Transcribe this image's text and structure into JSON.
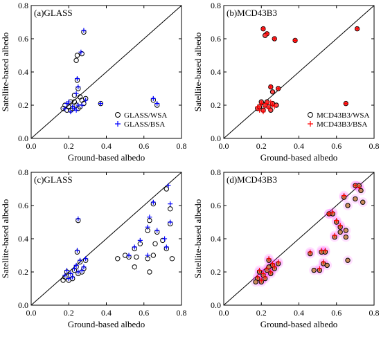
{
  "chart_data": [
    {
      "type": "scatter",
      "title": "(a)GLASS",
      "xlabel": "Ground-based albedo",
      "ylabel": "Satellite-based albedo",
      "xlim": [
        0,
        0.8
      ],
      "ylim": [
        0,
        0.8
      ],
      "xticks": [
        "0.0",
        "0.2",
        "0.4",
        "0.6",
        "0.8"
      ],
      "yticks": [
        "0.0",
        "0.2",
        "0.4",
        "0.6",
        "0.8"
      ],
      "one_to_one_line": true,
      "legend_position": "bottom-right",
      "series": [
        {
          "name": "GLASS/WSA",
          "marker": "open-circle",
          "color": "#000000",
          "points": [
            [
              0.28,
              0.64
            ],
            [
              0.27,
              0.51
            ],
            [
              0.245,
              0.5
            ],
            [
              0.24,
              0.47
            ],
            [
              0.245,
              0.35
            ],
            [
              0.25,
              0.3
            ],
            [
              0.23,
              0.26
            ],
            [
              0.26,
              0.25
            ],
            [
              0.29,
              0.24
            ],
            [
              0.37,
              0.21
            ],
            [
              0.65,
              0.23
            ],
            [
              0.67,
              0.2
            ],
            [
              0.21,
              0.22
            ],
            [
              0.27,
              0.23
            ],
            [
              0.18,
              0.2
            ],
            [
              0.2,
              0.19
            ],
            [
              0.22,
              0.18
            ],
            [
              0.24,
              0.2
            ],
            [
              0.26,
              0.19
            ],
            [
              0.19,
              0.17
            ],
            [
              0.23,
              0.22
            ],
            [
              0.25,
              0.18
            ],
            [
              0.17,
              0.18
            ],
            [
              0.28,
              0.21
            ],
            [
              0.21,
              0.17
            ]
          ]
        },
        {
          "name": "GLASS/BSA",
          "marker": "plus",
          "color": "#0000ff",
          "points": [
            [
              0.28,
              0.65
            ],
            [
              0.265,
              0.52
            ],
            [
              0.245,
              0.36
            ],
            [
              0.25,
              0.31
            ],
            [
              0.24,
              0.27
            ],
            [
              0.29,
              0.23
            ],
            [
              0.37,
              0.21
            ],
            [
              0.65,
              0.24
            ],
            [
              0.67,
              0.21
            ],
            [
              0.19,
              0.21
            ],
            [
              0.22,
              0.19
            ],
            [
              0.25,
              0.2
            ],
            [
              0.18,
              0.18
            ],
            [
              0.21,
              0.16
            ],
            [
              0.24,
              0.17
            ],
            [
              0.27,
              0.2
            ],
            [
              0.2,
              0.22
            ],
            [
              0.23,
              0.18
            ]
          ]
        }
      ]
    },
    {
      "type": "scatter",
      "title": "(b)MCD43B3",
      "xlabel": "Ground-based albedo",
      "ylabel": "Satellite-based albedo",
      "xlim": [
        0,
        0.8
      ],
      "ylim": [
        0,
        0.8
      ],
      "xticks": [
        "0.0",
        "0.2",
        "0.4",
        "0.6",
        "0.8"
      ],
      "yticks": [
        "0.0",
        "0.2",
        "0.4",
        "0.6",
        "0.8"
      ],
      "one_to_one_line": true,
      "legend_position": "bottom-right",
      "series": [
        {
          "name": "MCD43B3/WSA",
          "marker": "open-circle",
          "color": "#000000",
          "points": [
            [
              0.21,
              0.66
            ],
            [
              0.23,
              0.63
            ],
            [
              0.22,
              0.62
            ],
            [
              0.27,
              0.6
            ],
            [
              0.38,
              0.59
            ],
            [
              0.71,
              0.66
            ],
            [
              0.65,
              0.21
            ],
            [
              0.29,
              0.3
            ],
            [
              0.25,
              0.31
            ],
            [
              0.26,
              0.28
            ],
            [
              0.2,
              0.22
            ],
            [
              0.22,
              0.2
            ],
            [
              0.24,
              0.19
            ],
            [
              0.18,
              0.18
            ],
            [
              0.21,
              0.17
            ],
            [
              0.23,
              0.22
            ],
            [
              0.26,
              0.21
            ],
            [
              0.19,
              0.19
            ],
            [
              0.25,
              0.17
            ],
            [
              0.28,
              0.2
            ]
          ]
        },
        {
          "name": "MCD43B3/BSA",
          "marker": "plus",
          "color": "#ff0000",
          "points": [
            [
              0.21,
              0.66
            ],
            [
              0.23,
              0.63
            ],
            [
              0.27,
              0.6
            ],
            [
              0.38,
              0.59
            ],
            [
              0.71,
              0.66
            ],
            [
              0.65,
              0.21
            ],
            [
              0.29,
              0.3
            ],
            [
              0.25,
              0.31
            ],
            [
              0.2,
              0.21
            ],
            [
              0.22,
              0.19
            ],
            [
              0.24,
              0.18
            ],
            [
              0.19,
              0.17
            ],
            [
              0.23,
              0.21
            ],
            [
              0.26,
              0.2
            ],
            [
              0.21,
              0.16
            ],
            [
              0.18,
              0.19
            ],
            [
              0.25,
              0.22
            ],
            [
              0.27,
              0.19
            ]
          ]
        }
      ]
    },
    {
      "type": "scatter",
      "title": "(c)GLASS",
      "xlabel": "Ground-based albedo",
      "ylabel": "Satellite-based albedo",
      "xlim": [
        0,
        0.8
      ],
      "ylim": [
        0,
        0.8
      ],
      "xticks": [
        "0.0",
        "0.2",
        "0.4",
        "0.6",
        "0.8"
      ],
      "yticks": [
        "0.0",
        "0.2",
        "0.4",
        "0.6",
        "0.8"
      ],
      "one_to_one_line": true,
      "series": [
        {
          "marker": "open-circle",
          "color": "#000000",
          "points": [
            [
              0.72,
              0.7
            ],
            [
              0.74,
              0.58
            ],
            [
              0.65,
              0.61
            ],
            [
              0.63,
              0.51
            ],
            [
              0.74,
              0.49
            ],
            [
              0.62,
              0.45
            ],
            [
              0.67,
              0.44
            ],
            [
              0.7,
              0.39
            ],
            [
              0.72,
              0.34
            ],
            [
              0.66,
              0.37
            ],
            [
              0.58,
              0.37
            ],
            [
              0.55,
              0.34
            ],
            [
              0.5,
              0.3
            ],
            [
              0.46,
              0.28
            ],
            [
              0.52,
              0.29
            ],
            [
              0.56,
              0.29
            ],
            [
              0.62,
              0.28
            ],
            [
              0.65,
              0.3
            ],
            [
              0.75,
              0.28
            ],
            [
              0.63,
              0.2
            ],
            [
              0.55,
              0.23
            ],
            [
              0.25,
              0.51
            ],
            [
              0.245,
              0.32
            ],
            [
              0.29,
              0.27
            ],
            [
              0.26,
              0.26
            ],
            [
              0.28,
              0.22
            ],
            [
              0.19,
              0.2
            ],
            [
              0.21,
              0.18
            ],
            [
              0.23,
              0.21
            ],
            [
              0.25,
              0.19
            ],
            [
              0.18,
              0.17
            ],
            [
              0.22,
              0.16
            ],
            [
              0.2,
              0.15
            ],
            [
              0.24,
              0.23
            ],
            [
              0.27,
              0.2
            ],
            [
              0.17,
              0.15
            ]
          ]
        },
        {
          "marker": "plus",
          "color": "#0000ff",
          "points": [
            [
              0.73,
              0.72
            ],
            [
              0.74,
              0.61
            ],
            [
              0.65,
              0.62
            ],
            [
              0.63,
              0.53
            ],
            [
              0.74,
              0.5
            ],
            [
              0.62,
              0.47
            ],
            [
              0.67,
              0.45
            ],
            [
              0.71,
              0.4
            ],
            [
              0.72,
              0.35
            ],
            [
              0.58,
              0.39
            ],
            [
              0.55,
              0.35
            ],
            [
              0.52,
              0.3
            ],
            [
              0.62,
              0.3
            ],
            [
              0.25,
              0.52
            ],
            [
              0.245,
              0.33
            ],
            [
              0.29,
              0.28
            ],
            [
              0.26,
              0.27
            ],
            [
              0.28,
              0.23
            ],
            [
              0.19,
              0.21
            ],
            [
              0.21,
              0.19
            ],
            [
              0.23,
              0.22
            ],
            [
              0.25,
              0.2
            ],
            [
              0.18,
              0.18
            ],
            [
              0.22,
              0.17
            ],
            [
              0.2,
              0.16
            ],
            [
              0.24,
              0.24
            ],
            [
              0.27,
              0.21
            ]
          ]
        }
      ]
    },
    {
      "type": "scatter",
      "title": "(d)MCD43B3",
      "xlabel": "Ground-based albedo",
      "ylabel": "Satellite-based albedo",
      "xlim": [
        0,
        0.8
      ],
      "ylim": [
        0,
        0.8
      ],
      "xticks": [
        "0.0",
        "0.2",
        "0.4",
        "0.6",
        "0.8"
      ],
      "yticks": [
        "0.0",
        "0.2",
        "0.4",
        "0.6",
        "0.8"
      ],
      "one_to_one_line": true,
      "series": [
        {
          "marker": "open-circle",
          "color": "#000000",
          "points": [
            [
              0.7,
              0.72
            ],
            [
              0.72,
              0.72
            ],
            [
              0.73,
              0.69
            ],
            [
              0.74,
              0.62
            ],
            [
              0.7,
              0.64
            ],
            [
              0.64,
              0.65
            ],
            [
              0.58,
              0.55
            ],
            [
              0.56,
              0.55
            ],
            [
              0.66,
              0.6
            ],
            [
              0.62,
              0.47
            ],
            [
              0.62,
              0.44
            ],
            [
              0.65,
              0.45
            ],
            [
              0.6,
              0.5
            ],
            [
              0.59,
              0.41
            ],
            [
              0.65,
              0.41
            ],
            [
              0.52,
              0.32
            ],
            [
              0.54,
              0.32
            ],
            [
              0.46,
              0.31
            ],
            [
              0.53,
              0.25
            ],
            [
              0.55,
              0.24
            ],
            [
              0.51,
              0.21
            ],
            [
              0.48,
              0.21
            ],
            [
              0.66,
              0.27
            ],
            [
              0.29,
              0.25
            ],
            [
              0.24,
              0.27
            ],
            [
              0.26,
              0.24
            ],
            [
              0.19,
              0.2
            ],
            [
              0.21,
              0.18
            ],
            [
              0.23,
              0.21
            ],
            [
              0.25,
              0.19
            ],
            [
              0.18,
              0.16
            ],
            [
              0.22,
              0.16
            ],
            [
              0.2,
              0.14
            ],
            [
              0.27,
              0.22
            ],
            [
              0.17,
              0.14
            ],
            [
              0.24,
              0.23
            ]
          ]
        },
        {
          "marker": "plus",
          "color": "#ff0000",
          "points": [
            [
              0.7,
              0.72
            ],
            [
              0.72,
              0.71
            ],
            [
              0.64,
              0.66
            ],
            [
              0.58,
              0.56
            ],
            [
              0.56,
              0.55
            ],
            [
              0.62,
              0.48
            ],
            [
              0.6,
              0.51
            ],
            [
              0.59,
              0.42
            ],
            [
              0.52,
              0.33
            ],
            [
              0.54,
              0.33
            ],
            [
              0.46,
              0.32
            ],
            [
              0.53,
              0.26
            ],
            [
              0.51,
              0.22
            ],
            [
              0.29,
              0.26
            ],
            [
              0.24,
              0.28
            ],
            [
              0.26,
              0.25
            ],
            [
              0.19,
              0.21
            ],
            [
              0.21,
              0.19
            ],
            [
              0.23,
              0.22
            ],
            [
              0.25,
              0.2
            ],
            [
              0.18,
              0.17
            ],
            [
              0.22,
              0.17
            ],
            [
              0.2,
              0.15
            ],
            [
              0.27,
              0.23
            ]
          ]
        }
      ]
    }
  ]
}
